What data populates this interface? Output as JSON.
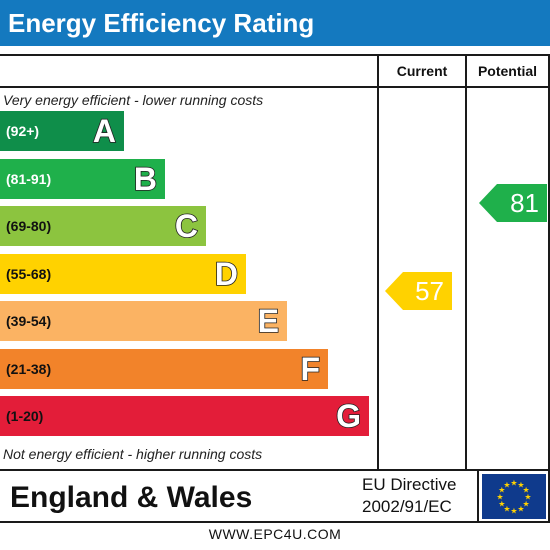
{
  "title": "Energy Efficiency Rating",
  "columns": {
    "current": "Current",
    "potential": "Potential"
  },
  "notes": {
    "top": "Very energy efficient - lower running costs",
    "bottom": "Not energy efficient - higher running costs"
  },
  "chart_data": {
    "type": "bar",
    "categories": [
      "A",
      "B",
      "C",
      "D",
      "E",
      "F",
      "G"
    ],
    "bands": [
      {
        "letter": "A",
        "range": "(92+)",
        "color": "#0f8e4a",
        "dark": true
      },
      {
        "letter": "B",
        "range": "(81-91)",
        "color": "#1fb04b",
        "dark": true
      },
      {
        "letter": "C",
        "range": "(69-80)",
        "color": "#8cc43f",
        "dark": false
      },
      {
        "letter": "D",
        "range": "(55-68)",
        "color": "#ffd200",
        "dark": false
      },
      {
        "letter": "E",
        "range": "(39-54)",
        "color": "#fbb363",
        "dark": false
      },
      {
        "letter": "F",
        "range": "(21-38)",
        "color": "#f2832a",
        "dark": false
      },
      {
        "letter": "G",
        "range": "(1-20)",
        "color": "#e31d39",
        "dark": false
      }
    ],
    "current": {
      "value": "57",
      "band": "D",
      "color": "#ffd200"
    },
    "potential": {
      "value": "81",
      "band": "B",
      "color": "#1fb04b"
    }
  },
  "footer": {
    "country": "England & Wales",
    "directive_line1": "EU Directive",
    "directive_line2": "2002/91/EC"
  },
  "website": "WWW.EPC4U.COM",
  "icons": {
    "flag": "eu-flag-icon"
  }
}
